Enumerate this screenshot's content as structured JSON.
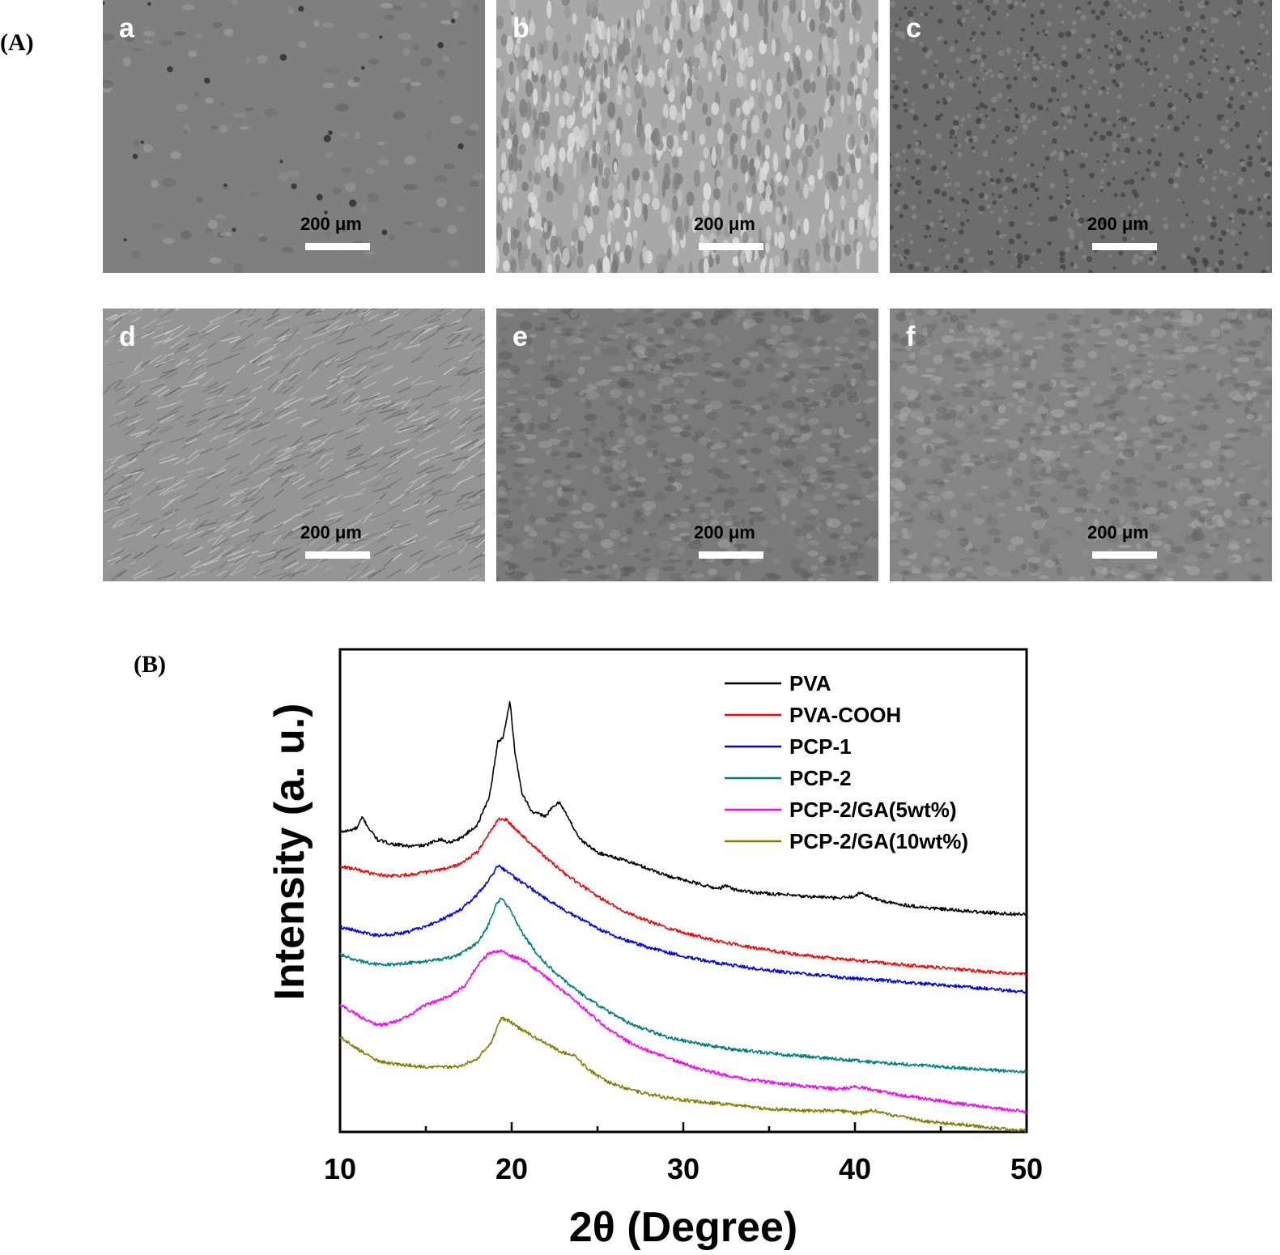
{
  "figure": {
    "panel_a_label": "(A)",
    "panel_b_label": "(B)"
  },
  "sem_panels": [
    {
      "letter": "a",
      "scale_label": "200 μm",
      "tone": "#7f7f7f"
    },
    {
      "letter": "b",
      "scale_label": "200 μm",
      "tone": "#a8a8a8"
    },
    {
      "letter": "c",
      "scale_label": "200 μm",
      "tone": "#6d6d6d"
    },
    {
      "letter": "d",
      "scale_label": "200 μm",
      "tone": "#959595"
    },
    {
      "letter": "e",
      "scale_label": "200 μm",
      "tone": "#7a7a7a"
    },
    {
      "letter": "f",
      "scale_label": "200 μm",
      "tone": "#858585"
    }
  ],
  "chart_data": {
    "type": "line",
    "title": "",
    "xlabel": "2θ (Degree)",
    "ylabel": "Intensity (a. u.)",
    "xlim": [
      10,
      50
    ],
    "ylim": [
      0,
      100
    ],
    "xticks": [
      10,
      20,
      30,
      40,
      50
    ],
    "grid": false,
    "legend_position": "top-right",
    "series": [
      {
        "name": "PVA",
        "color": "#000000",
        "x": [
          10,
          10.5,
          11,
          11.3,
          11.7,
          12.2,
          13,
          14,
          15,
          15.8,
          16.3,
          17,
          18,
          18.7,
          19.2,
          19.5,
          19.9,
          20.2,
          20.6,
          21.2,
          22,
          22.4,
          22.8,
          23.3,
          24,
          25,
          26,
          27,
          28,
          29,
          30,
          31,
          32,
          32.5,
          33,
          34,
          35,
          36,
          37,
          38,
          39,
          39.8,
          40.4,
          41,
          42,
          43,
          44,
          45,
          46,
          47,
          48,
          49,
          50
        ],
        "y": [
          62.2,
          62.4,
          63,
          65.2,
          62.8,
          60.5,
          59.7,
          59.2,
          59.4,
          60.7,
          60,
          60.8,
          63.6,
          69.5,
          80.8,
          81.8,
          89.2,
          78.5,
          70.3,
          66.2,
          65.5,
          67.3,
          68.4,
          65,
          60.6,
          57.9,
          56.9,
          55.8,
          54.5,
          53.2,
          52.2,
          51.3,
          50.4,
          51,
          50.2,
          49.7,
          49.4,
          49.1,
          48.8,
          48.7,
          48.4,
          48.7,
          49.6,
          48.5,
          47.5,
          47,
          46.5,
          46.2,
          45.9,
          45.6,
          45.4,
          45.2,
          45.1
        ]
      },
      {
        "name": "PVA-COOH",
        "color": "#ff0000",
        "x": [
          10,
          11,
          12,
          13,
          14,
          15,
          16,
          17,
          18,
          18.7,
          19.3,
          19.7,
          20.3,
          21,
          22,
          23,
          24,
          25,
          26,
          27,
          28,
          30,
          32,
          34,
          36,
          38,
          40,
          42,
          44,
          46,
          48,
          50
        ],
        "y": [
          55,
          54.4,
          53.4,
          53.1,
          53.3,
          53.8,
          54.4,
          55.5,
          58,
          62,
          65,
          64.6,
          62.5,
          60.2,
          56.8,
          53.8,
          51.2,
          48.8,
          46.8,
          45,
          43.6,
          41.3,
          39.6,
          38.2,
          37.1,
          36.2,
          35.6,
          34.9,
          34.3,
          33.7,
          33.1,
          32.6
        ]
      },
      {
        "name": "PCP-1",
        "color": "#0000ff",
        "x": [
          10,
          11,
          12,
          13,
          14,
          15,
          16,
          17,
          18,
          18.7,
          19.2,
          19.6,
          20.2,
          21,
          22,
          23,
          24,
          25,
          26,
          27,
          28,
          30,
          32,
          34,
          36,
          38,
          40,
          42,
          44,
          46,
          48,
          50
        ],
        "y": [
          42.5,
          41.6,
          40.8,
          40.9,
          41.5,
          42.6,
          44.1,
          46,
          49.2,
          52.3,
          55.2,
          54.2,
          52.6,
          50.8,
          48.3,
          46.1,
          44.2,
          42.2,
          40.6,
          39.3,
          38.2,
          36.4,
          35,
          33.9,
          33.1,
          32.4,
          31.8,
          31.3,
          30.7,
          30.2,
          29.6,
          29
        ]
      },
      {
        "name": "PCP-2",
        "color": "#008080",
        "x": [
          10,
          11,
          12,
          13,
          14,
          15,
          16,
          17,
          18,
          18.6,
          19.1,
          19.4,
          19.9,
          20.6,
          21.5,
          22.5,
          23.5,
          24.5,
          25.5,
          27,
          29,
          31,
          33,
          35,
          37,
          39,
          41,
          43,
          45,
          47,
          49,
          50
        ],
        "y": [
          36.8,
          35.5,
          34.8,
          34.7,
          35,
          35.3,
          35.8,
          36.8,
          39.2,
          42.5,
          47,
          48.5,
          46.2,
          41.3,
          36.8,
          33.1,
          30.1,
          27.5,
          25.2,
          22.3,
          19.7,
          18.2,
          17.1,
          16.3,
          15.7,
          15.1,
          14.5,
          14,
          13.5,
          13,
          12.6,
          12.4
        ]
      },
      {
        "name": "PCP-2/GA(5wt%)",
        "color": "#ff00ff",
        "x": [
          10,
          10.8,
          11.5,
          12.2,
          13,
          14,
          15,
          15.8,
          16.5,
          17.3,
          18,
          18.6,
          19.3,
          20,
          20.7,
          21.5,
          22.5,
          23.5,
          24.5,
          25.5,
          27,
          29,
          31,
          33,
          35,
          37,
          39,
          40.2,
          41,
          42,
          44,
          46,
          48,
          50
        ],
        "y": [
          26.3,
          24.8,
          23.2,
          22.1,
          22.6,
          24.1,
          26.4,
          27.3,
          28.4,
          30.4,
          34.4,
          36.8,
          37.6,
          36.4,
          35.6,
          33.5,
          30.6,
          27.8,
          24.7,
          21.6,
          18.2,
          15.4,
          13,
          11.3,
          10.3,
          9.5,
          8.9,
          9.4,
          8.8,
          8,
          6.9,
          5.9,
          5,
          4.2
        ]
      },
      {
        "name": "PCP-2/GA(10wt%)",
        "color": "#808000",
        "x": [
          10,
          11,
          12,
          13,
          14,
          15,
          16,
          17,
          18,
          18.8,
          19.4,
          19.9,
          20.4,
          21,
          22,
          23,
          23.6,
          24.5,
          25.5,
          27,
          29,
          31,
          33,
          35,
          37,
          39,
          40.3,
          41,
          42,
          44,
          46,
          48,
          50
        ],
        "y": [
          19.6,
          17.2,
          15,
          14.1,
          13.8,
          13.5,
          13.4,
          13.7,
          15.2,
          18.6,
          23.6,
          22.9,
          21.6,
          20.3,
          18.3,
          16.4,
          16,
          12.8,
          10.5,
          8.6,
          7.1,
          6.2,
          5.6,
          4.8,
          4.4,
          4.4,
          3.8,
          4.5,
          3.6,
          2.3,
          1.6,
          0.8,
          0.2
        ]
      }
    ]
  }
}
